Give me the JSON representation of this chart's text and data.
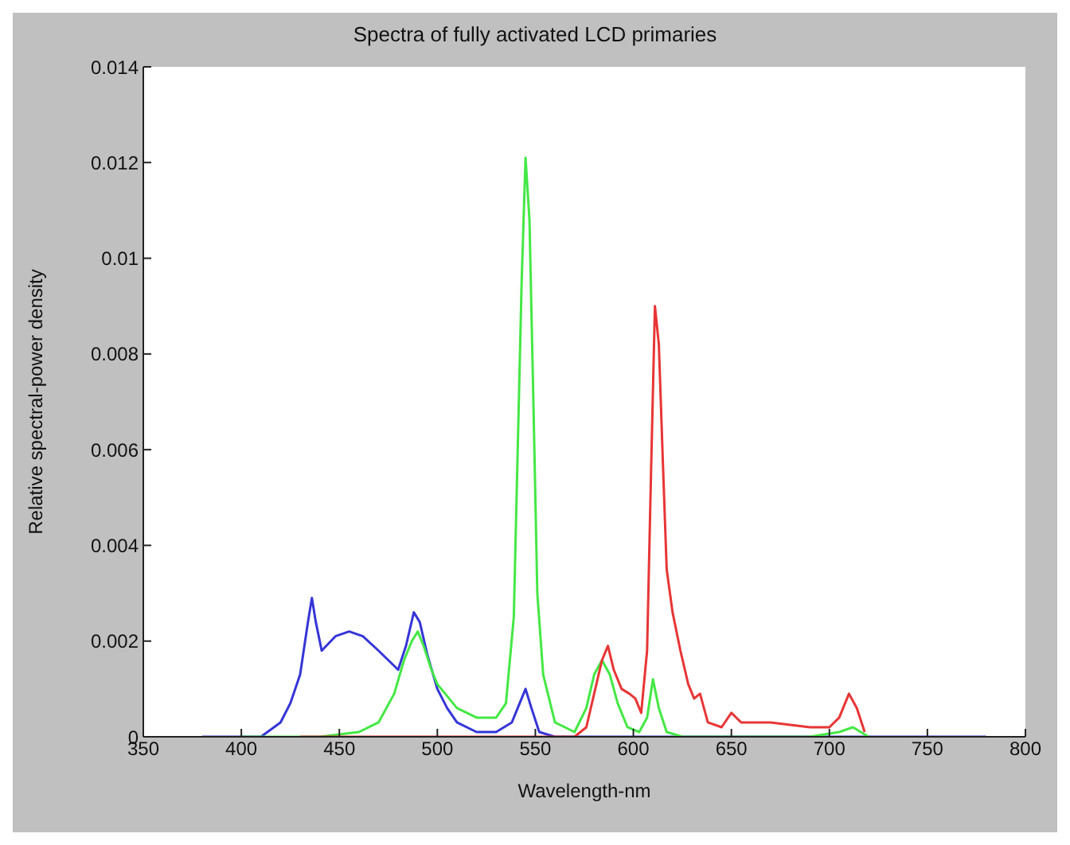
{
  "chart_data": {
    "type": "line",
    "title": "Spectra of fully activated LCD primaries",
    "xlabel": "Wavelength-nm",
    "ylabel": "Relative spectral-power density",
    "xlim": [
      350,
      800
    ],
    "xticks": [
      350,
      400,
      450,
      500,
      550,
      600,
      650,
      700,
      750,
      800
    ],
    "ylim": [
      0,
      0.014
    ],
    "yticks": [
      0,
      0.002,
      0.004,
      0.006,
      0.008,
      0.01,
      0.012,
      0.014
    ],
    "grid": false,
    "legend": false,
    "marker": "none",
    "line_style": "solid",
    "series": [
      {
        "color": "#3535d8",
        "x": [
          380,
          400,
          410,
          420,
          425,
          430,
          434,
          436,
          438,
          441,
          448,
          455,
          462,
          470,
          480,
          484,
          488,
          491,
          495,
          500,
          505,
          510,
          520,
          530,
          538,
          542,
          545,
          548,
          552,
          560,
          600,
          700,
          780
        ],
        "values": [
          0,
          0,
          0,
          0.0003,
          0.0007,
          0.0013,
          0.0024,
          0.0029,
          0.0024,
          0.0018,
          0.0021,
          0.0022,
          0.0021,
          0.0018,
          0.0014,
          0.0019,
          0.0026,
          0.0024,
          0.0017,
          0.001,
          0.0006,
          0.0003,
          0.0001,
          0.0001,
          0.0003,
          0.0007,
          0.001,
          0.0006,
          0.0001,
          0,
          0,
          0,
          0
        ]
      },
      {
        "color": "#44e844",
        "x": [
          400,
          440,
          460,
          470,
          478,
          483,
          487,
          490,
          493,
          497,
          500,
          510,
          520,
          530,
          535,
          539,
          541,
          543,
          545,
          547,
          549,
          551,
          554,
          560,
          570,
          576,
          580,
          584,
          588,
          592,
          597,
          603,
          607,
          610,
          613,
          617,
          625,
          690,
          705,
          712,
          720
        ],
        "values": [
          0,
          0,
          0.0001,
          0.0003,
          0.0009,
          0.0016,
          0.002,
          0.0022,
          0.0019,
          0.0014,
          0.0011,
          0.0006,
          0.0004,
          0.0004,
          0.0007,
          0.0025,
          0.006,
          0.0095,
          0.0121,
          0.0108,
          0.007,
          0.003,
          0.0013,
          0.0003,
          0.0001,
          0.0006,
          0.0013,
          0.0016,
          0.0013,
          0.0007,
          0.0002,
          0.0001,
          0.0004,
          0.0012,
          0.0006,
          0.0001,
          0,
          0,
          0.0001,
          0.0002,
          0
        ]
      },
      {
        "color": "#e83535",
        "x": [
          430,
          570,
          576,
          580,
          584,
          587,
          590,
          594,
          598,
          601,
          604,
          607,
          609,
          611,
          612,
          613,
          615,
          617,
          620,
          624,
          628,
          631,
          634,
          638,
          645,
          650,
          655,
          670,
          690,
          700,
          705,
          710,
          714,
          718
        ],
        "values": [
          0,
          0,
          0.0002,
          0.0009,
          0.0016,
          0.0019,
          0.0014,
          0.001,
          0.0009,
          0.0008,
          0.0005,
          0.0018,
          0.0055,
          0.009,
          0.0086,
          0.0082,
          0.0058,
          0.0035,
          0.0026,
          0.0018,
          0.0011,
          0.0008,
          0.0009,
          0.0003,
          0.0002,
          0.0005,
          0.0003,
          0.0003,
          0.0002,
          0.0002,
          0.0004,
          0.0009,
          0.0006,
          0.0001
        ]
      }
    ]
  }
}
